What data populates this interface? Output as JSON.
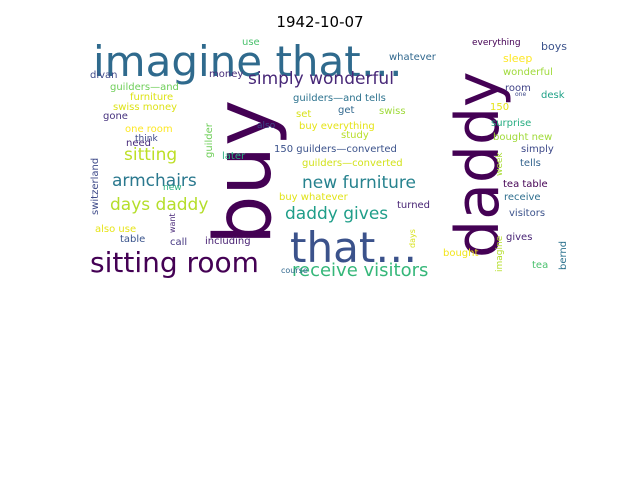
{
  "chart_data": {
    "type": "wordcloud",
    "title": "1942-10-07",
    "words": [
      {
        "text": "buy",
        "weight": 1.0,
        "color": "#440154"
      },
      {
        "text": "daddy",
        "weight": 0.95,
        "color": "#440154"
      },
      {
        "text": "imagine that…",
        "weight": 0.7,
        "color": "#2f6a8d"
      },
      {
        "text": "that…",
        "weight": 0.62,
        "color": "#3b528b"
      },
      {
        "text": "sitting room",
        "weight": 0.5,
        "color": "#440154"
      },
      {
        "text": "receive visitors",
        "weight": 0.33,
        "color": "#35b779"
      },
      {
        "text": "simply wonderful",
        "weight": 0.32,
        "color": "#482878"
      },
      {
        "text": "new furniture",
        "weight": 0.3,
        "color": "#26828e"
      },
      {
        "text": "daddy gives",
        "weight": 0.3,
        "color": "#1f9e89"
      },
      {
        "text": "days daddy",
        "weight": 0.3,
        "color": "#b5de2b"
      },
      {
        "text": "armchairs",
        "weight": 0.3,
        "color": "#2a788e"
      },
      {
        "text": "sitting",
        "weight": 0.3,
        "color": "#bddf26"
      },
      {
        "text": "whatever",
        "weight": 0.15,
        "color": "#31688e"
      },
      {
        "text": "everything",
        "weight": 0.12,
        "color": "#440154"
      },
      {
        "text": "boys",
        "weight": 0.15,
        "color": "#3b528b"
      },
      {
        "text": "sleep",
        "weight": 0.15,
        "color": "#fde725"
      },
      {
        "text": "wonderful",
        "weight": 0.15,
        "color": "#9fda3a"
      },
      {
        "text": "use",
        "weight": 0.14,
        "color": "#4ac16d"
      },
      {
        "text": "money",
        "weight": 0.15,
        "color": "#472d7b"
      },
      {
        "text": "divan",
        "weight": 0.15,
        "color": "#3e4a89"
      },
      {
        "text": "guilders—and",
        "weight": 0.15,
        "color": "#6ece58"
      },
      {
        "text": "furniture",
        "weight": 0.15,
        "color": "#dde318"
      },
      {
        "text": "room",
        "weight": 0.15,
        "color": "#404387"
      },
      {
        "text": "desk",
        "weight": 0.15,
        "color": "#1fa187"
      },
      {
        "text": "guilders—and tells",
        "weight": 0.15,
        "color": "#2c728e"
      },
      {
        "text": "swiss money",
        "weight": 0.15,
        "color": "#dde318"
      },
      {
        "text": "get",
        "weight": 0.15,
        "color": "#31688e"
      },
      {
        "text": "swiss",
        "weight": 0.15,
        "color": "#9fda3a"
      },
      {
        "text": "150",
        "weight": 0.15,
        "color": "#e5e419"
      },
      {
        "text": "gone",
        "weight": 0.15,
        "color": "#46327e"
      },
      {
        "text": "set",
        "weight": 0.15,
        "color": "#d8e219"
      },
      {
        "text": "buy everything",
        "weight": 0.15,
        "color": "#e5e419"
      },
      {
        "text": "surprise",
        "weight": 0.15,
        "color": "#26ad81"
      },
      {
        "text": "one room",
        "weight": 0.15,
        "color": "#fde725"
      },
      {
        "text": "study",
        "weight": 0.15,
        "color": "#b8de29"
      },
      {
        "text": "bought new",
        "weight": 0.15,
        "color": "#a0da39"
      },
      {
        "text": "also",
        "weight": 0.12,
        "color": "#3e4a89"
      },
      {
        "text": "need",
        "weight": 0.15,
        "color": "#472a7a"
      },
      {
        "text": "simply",
        "weight": 0.15,
        "color": "#3e4989"
      },
      {
        "text": "150 guilders—converted",
        "weight": 0.15,
        "color": "#3b528b"
      },
      {
        "text": "tells",
        "weight": 0.15,
        "color": "#33638d"
      },
      {
        "text": "later",
        "weight": 0.15,
        "color": "#29af7f"
      },
      {
        "text": "guilders—converted",
        "weight": 0.15,
        "color": "#d2e21b"
      },
      {
        "text": "new",
        "weight": 0.15,
        "color": "#28ae80"
      },
      {
        "text": "think",
        "weight": 0.12,
        "color": "#3e4989"
      },
      {
        "text": "tea table",
        "weight": 0.15,
        "color": "#440154"
      },
      {
        "text": "buy whatever",
        "weight": 0.15,
        "color": "#e0e318"
      },
      {
        "text": "receive",
        "weight": 0.15,
        "color": "#2e6e8e"
      },
      {
        "text": "visitors",
        "weight": 0.15,
        "color": "#3b528b"
      },
      {
        "text": "turned",
        "weight": 0.15,
        "color": "#482475"
      },
      {
        "text": "also use",
        "weight": 0.15,
        "color": "#e7e419"
      },
      {
        "text": "table",
        "weight": 0.15,
        "color": "#3a548c"
      },
      {
        "text": "call",
        "weight": 0.15,
        "color": "#453781"
      },
      {
        "text": "including",
        "weight": 0.15,
        "color": "#482173"
      },
      {
        "text": "gives",
        "weight": 0.15,
        "color": "#482475"
      },
      {
        "text": "bought",
        "weight": 0.15,
        "color": "#f1e51d"
      },
      {
        "text": "tea",
        "weight": 0.15,
        "color": "#4ac16d"
      },
      {
        "text": "course",
        "weight": 0.12,
        "color": "#31688e"
      },
      {
        "text": "switzerland",
        "weight": 0.15,
        "color": "#3e4a89"
      },
      {
        "text": "guilder",
        "weight": 0.15,
        "color": "#6ece58"
      },
      {
        "text": "want",
        "weight": 0.12,
        "color": "#482677"
      },
      {
        "text": "days",
        "weight": 0.12,
        "color": "#d8e219"
      },
      {
        "text": "week",
        "weight": 0.12,
        "color": "#a8db34"
      },
      {
        "text": "imagine",
        "weight": 0.12,
        "color": "#b5de2b"
      },
      {
        "text": "bernd",
        "weight": 0.15,
        "color": "#2c728e"
      },
      {
        "text": "one",
        "weight": 0.08,
        "color": "#3e4989"
      }
    ]
  }
}
